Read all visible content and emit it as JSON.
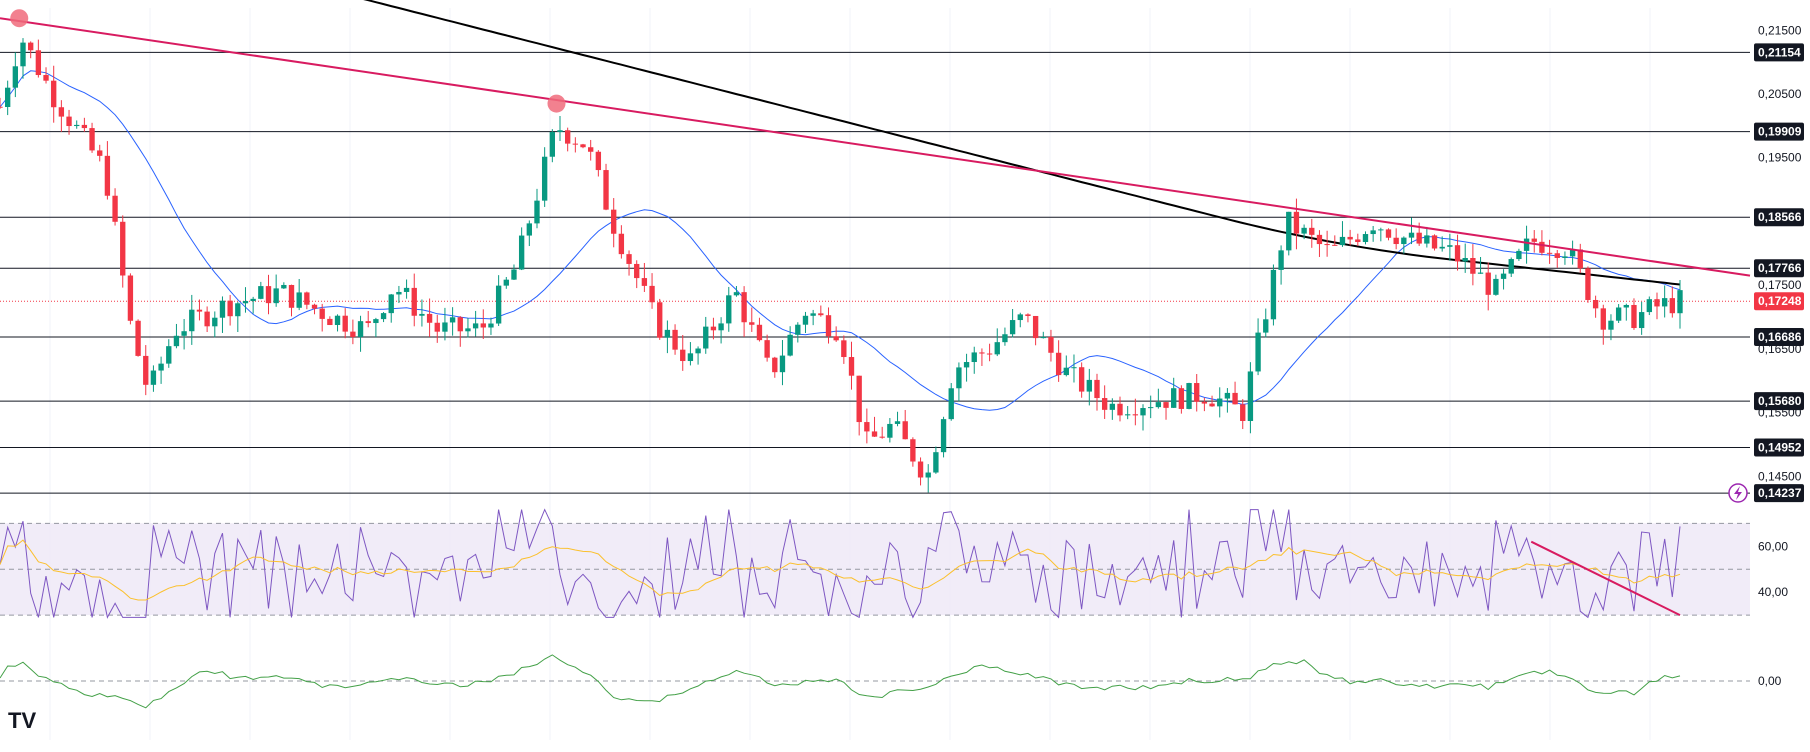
{
  "chart_data": [
    {
      "type": "candlestick",
      "panel": "price",
      "price_axis": {
        "ticks": [
          "0,21500",
          "0,20500",
          "0,19500",
          "0,17500",
          "0,16500",
          "0,15500",
          "0,14500"
        ],
        "tick_values": [
          0.215,
          0.205,
          0.195,
          0.175,
          0.165,
          0.155,
          0.145
        ],
        "ylim": [
          0.1405,
          0.2185
        ]
      },
      "horizontal_levels": [
        {
          "label": "0,21154",
          "value": 0.21154
        },
        {
          "label": "0,19909",
          "value": 0.19909
        },
        {
          "label": "0,18566",
          "value": 0.18566
        },
        {
          "label": "0,17766",
          "value": 0.17766
        },
        {
          "label": "0,16686",
          "value": 0.16686
        },
        {
          "label": "0,15680",
          "value": 0.1568
        },
        {
          "label": "0,14952",
          "value": 0.14952
        },
        {
          "label": "0,14237",
          "value": 0.14237
        }
      ],
      "current_price": {
        "label": "0,17248",
        "value": 0.17248,
        "color": "#f23645"
      },
      "trendline": {
        "color": "#d81b60",
        "from": [
          0,
          0.2169
        ],
        "to": [
          1.0,
          0.1765
        ]
      },
      "touch_markers": [
        [
          0.011,
          0.2169
        ],
        [
          0.318,
          0.2035
        ]
      ],
      "ma_fast_color": "#2962ff",
      "ma_slow_color": "#000000",
      "bull_color": "#089981",
      "bear_color": "#f23645",
      "candles_count": 220
    },
    {
      "type": "line",
      "panel": "rsi",
      "ticks": [
        "60,00",
        "40,00"
      ],
      "tick_values": [
        60,
        40
      ],
      "band": [
        30,
        70
      ],
      "ylim": [
        27,
        78
      ],
      "line_color": "#7e57c2",
      "signal_color": "#fbc02d",
      "band_fill": "#ede7f6",
      "trendline": {
        "color": "#d81b60",
        "from": [
          0.875,
          62
        ],
        "to": [
          0.96,
          30
        ]
      }
    },
    {
      "type": "line",
      "panel": "momentum",
      "ticks": [
        "0,00"
      ],
      "tick_values": [
        0
      ],
      "ylim": [
        -1.0,
        1.0
      ],
      "line_color": "#43a047"
    }
  ],
  "logo_text": "TV"
}
